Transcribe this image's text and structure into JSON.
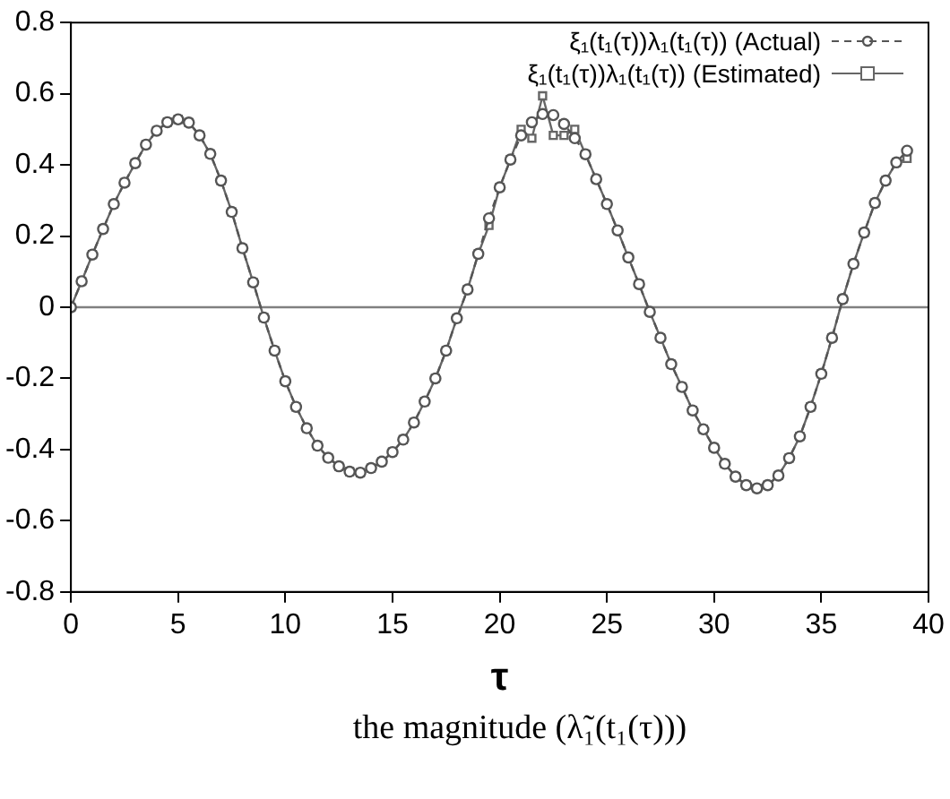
{
  "chart_data": {
    "type": "line",
    "xlabel": "τ",
    "annotations": [
      "the magnitude (λ̃₁(t₁(τ)))"
    ],
    "x": [
      0,
      0.5,
      1,
      1.5,
      2,
      2.5,
      3,
      3.5,
      4,
      4.5,
      5,
      5.5,
      6,
      6.5,
      7,
      7.5,
      8,
      8.5,
      9,
      9.5,
      10,
      10.5,
      11,
      11.5,
      12,
      12.5,
      13,
      13.5,
      14,
      14.5,
      15,
      15.5,
      16,
      16.5,
      17,
      17.5,
      18,
      18.5,
      19,
      19.5,
      20,
      20.5,
      21,
      21.5,
      22,
      22.5,
      23,
      23.5,
      24,
      24.5,
      25,
      25.5,
      26,
      26.5,
      27,
      27.5,
      28,
      28.5,
      29,
      29.5,
      30,
      30.5,
      31,
      31.5,
      32,
      32.5,
      33,
      33.5,
      34,
      34.5,
      35,
      35.5,
      36,
      36.5,
      37,
      37.5,
      38,
      38.5,
      39
    ],
    "series": [
      {
        "name": "ξ₁(t₁(τ))λ₁(t₁(τ)) (Actual)",
        "color": "#555555",
        "line_style": "dashed",
        "marker": "circle",
        "values": [
          0,
          0.073,
          0.148,
          0.22,
          0.29,
          0.35,
          0.405,
          0.457,
          0.496,
          0.52,
          0.528,
          0.519,
          0.483,
          0.431,
          0.356,
          0.268,
          0.166,
          0.07,
          -0.029,
          -0.122,
          -0.208,
          -0.28,
          -0.34,
          -0.389,
          -0.423,
          -0.447,
          -0.462,
          -0.465,
          -0.452,
          -0.434,
          -0.407,
          -0.372,
          -0.324,
          -0.265,
          -0.2,
          -0.122,
          -0.031,
          0.05,
          0.15,
          0.25,
          0.337,
          0.415,
          0.483,
          0.52,
          0.543,
          0.54,
          0.515,
          0.475,
          0.43,
          0.36,
          0.29,
          0.216,
          0.14,
          0.065,
          -0.013,
          -0.086,
          -0.16,
          -0.224,
          -0.29,
          -0.343,
          -0.395,
          -0.44,
          -0.476,
          -0.5,
          -0.509,
          -0.5,
          -0.473,
          -0.424,
          -0.363,
          -0.28,
          -0.187,
          -0.086,
          0.023,
          0.122,
          0.21,
          0.293,
          0.356,
          0.407,
          0.44
        ]
      },
      {
        "name": "ξ₁(t₁(τ))λ₁(t₁(τ)) (Estimated)",
        "color": "#666666",
        "line_style": "solid",
        "marker": "square",
        "values": [
          0,
          0.073,
          0.148,
          0.22,
          0.29,
          0.35,
          0.405,
          0.457,
          0.496,
          0.52,
          0.528,
          0.519,
          0.483,
          0.431,
          0.356,
          0.268,
          0.166,
          0.07,
          -0.029,
          -0.122,
          -0.208,
          -0.28,
          -0.34,
          -0.389,
          -0.423,
          -0.447,
          -0.462,
          -0.465,
          -0.452,
          -0.434,
          -0.407,
          -0.372,
          -0.324,
          -0.265,
          -0.2,
          -0.122,
          -0.031,
          0.05,
          0.15,
          0.23,
          0.337,
          0.415,
          0.5,
          0.475,
          0.594,
          0.483,
          0.483,
          0.5,
          0.43,
          0.36,
          0.29,
          0.216,
          0.14,
          0.065,
          -0.013,
          -0.086,
          -0.16,
          -0.224,
          -0.29,
          -0.343,
          -0.395,
          -0.44,
          -0.476,
          -0.5,
          -0.509,
          -0.5,
          -0.473,
          -0.424,
          -0.363,
          -0.28,
          -0.187,
          -0.086,
          0.023,
          0.122,
          0.21,
          0.293,
          0.356,
          0.407,
          0.418
        ]
      }
    ],
    "xlim": [
      0,
      40
    ],
    "xticks": [
      0,
      5,
      10,
      15,
      20,
      25,
      30,
      35,
      40
    ],
    "ylim": [
      -0.8,
      0.8
    ],
    "yticks": [
      -0.8,
      -0.6,
      -0.4,
      -0.2,
      0,
      0.2,
      0.4,
      0.6,
      0.8
    ],
    "ref_lines": [
      {
        "axis": "y",
        "value": 0,
        "color": "#808080"
      }
    ],
    "grid": false,
    "legend": "top right"
  }
}
